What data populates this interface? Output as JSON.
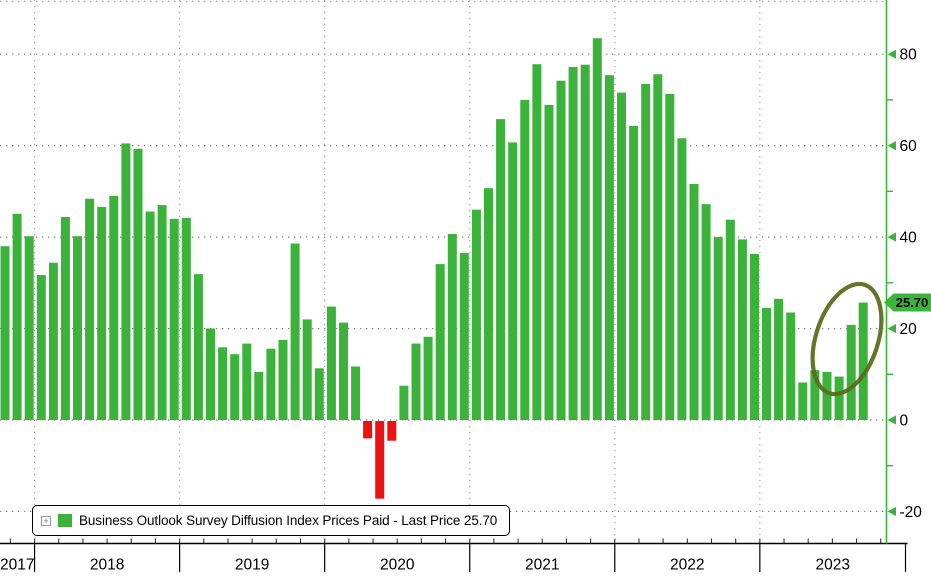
{
  "legend": {
    "label": "Business Outlook Survey Diffusion Index Prices Paid - Last Price 25.70",
    "expander_icon": "plus-box-icon",
    "swatch_icon": "series-color-swatch"
  },
  "last_price_badge": "25.70",
  "colors": {
    "bar_positive": "#3bb33b",
    "bar_negative": "#ed1212",
    "axis_green": "#3bb33b",
    "grid_gray": "#7d7d7d",
    "vgrid_gray": "#9a9a9a",
    "x_axis_black": "#000000",
    "annotation_olive": "#5b6e1d",
    "badge_fill": "#3bb43b",
    "text_black": "#000000"
  },
  "y_axis": {
    "side": "right",
    "major_tick_values": [
      80,
      60,
      40,
      20,
      0,
      -20
    ],
    "major_tick_labels": [
      "80",
      "60",
      "40",
      "20",
      "0",
      "-20"
    ],
    "minor_tick_values": [
      70,
      50,
      30,
      10,
      -10
    ]
  },
  "x_axis": {
    "year_labels": [
      "2017",
      "2018",
      "2019",
      "2020",
      "2021",
      "2022",
      "2023"
    ]
  },
  "chart_data": {
    "type": "bar",
    "title": "Business Outlook Survey Diffusion Index Prices Paid",
    "series_name": "Business Outlook Survey Diffusion Index Prices Paid",
    "frequency": "monthly",
    "first_bar_month": "2017-10",
    "last_bar_month": "2023-09",
    "last_price": 25.7,
    "ylim": [
      -25,
      92
    ],
    "grid": "dotted",
    "legend_position": "bottom-left",
    "values_by_year": {
      "2017": [
        38.0,
        45.1,
        40.2
      ],
      "2018": [
        31.7,
        34.4,
        44.4,
        40.2,
        48.4,
        46.6,
        49.0,
        60.5,
        59.3,
        45.6,
        47.0,
        44.0
      ],
      "2019": [
        44.2,
        31.9,
        20.0,
        15.9,
        14.4,
        16.7,
        10.5,
        15.6,
        17.5,
        38.6,
        22.0,
        11.3
      ],
      "2020": [
        24.8,
        21.3,
        11.7,
        -3.8,
        -17.0,
        -4.3,
        7.5,
        16.7,
        18.2,
        34.1,
        40.7,
        36.5
      ],
      "2021": [
        46.0,
        50.7,
        65.8,
        60.7,
        70.0,
        77.8,
        68.9,
        74.2,
        77.2,
        77.7,
        83.5,
        75.4
      ],
      "2022": [
        71.6,
        64.3,
        73.5,
        75.6,
        71.3,
        61.6,
        51.6,
        47.2,
        40.0,
        43.8,
        39.5,
        36.3
      ],
      "2023": [
        24.5,
        26.5,
        23.5,
        8.2,
        10.9,
        10.5,
        9.5,
        20.8,
        25.7
      ]
    },
    "annotation": {
      "type": "ellipse",
      "color": "#5b6e1d",
      "highlights": "Aug-Sep 2023 rebound in last two bars"
    }
  }
}
